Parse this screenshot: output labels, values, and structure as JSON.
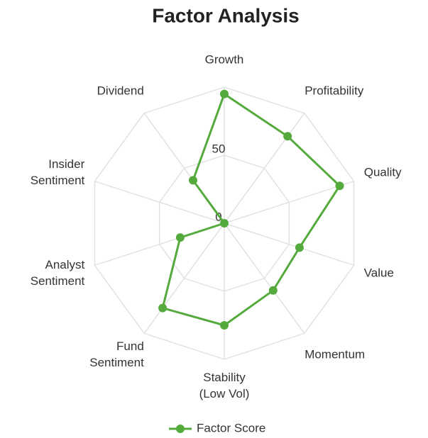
{
  "chart_data": {
    "type": "radar",
    "title": "Factor Analysis",
    "categories": [
      [
        "Growth"
      ],
      [
        "Profitability"
      ],
      [
        "Quality"
      ],
      [
        "Value"
      ],
      [
        "Momentum"
      ],
      [
        "Stability",
        "(Low Vol)"
      ],
      [
        "Fund",
        "Sentiment"
      ],
      [
        "Analyst",
        "Sentiment"
      ],
      [
        "Insider",
        "Sentiment"
      ],
      [
        "Dividend"
      ]
    ],
    "series": [
      {
        "name": "Factor Score",
        "color": "#55aa3d",
        "values": [
          95,
          79,
          89,
          58,
          61,
          75,
          77,
          34,
          0,
          39
        ]
      }
    ],
    "ylim": [
      0,
      100
    ],
    "yticks": [
      0,
      50
    ],
    "grid": true,
    "legend": "bottom"
  }
}
